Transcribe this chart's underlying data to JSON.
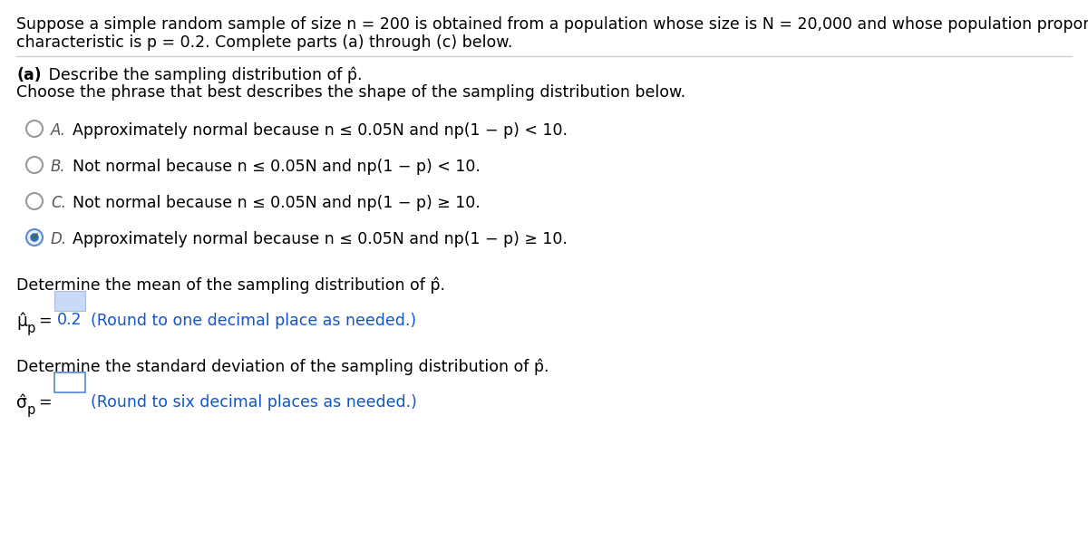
{
  "background_color": "#ffffff",
  "header_line1": "Suppose a simple random sample of size n = 200 is obtained from a population whose size is N = 20,000 and whose population proportion with a specified",
  "header_line2": "characteristic is p = 0.2. Complete parts (a) through (c) below.",
  "header_bold_parts": [
    "(a)",
    "(c)"
  ],
  "section_a_line1": "(a) Describe the sampling distribution of p̂.",
  "section_a_line2": "Choose the phrase that best describes the shape of the sampling distribution below.",
  "options": [
    {
      "label": "A.",
      "text": "Approximately normal because n ≤ 0.05N and np(1 − p) < 10.",
      "selected": false
    },
    {
      "label": "B.",
      "text": "Not normal because n ≤ 0.05N and np(1 − p) < 10.",
      "selected": false
    },
    {
      "label": "C.",
      "text": "Not normal because n ≤ 0.05N and np(1 − p) ≥ 10.",
      "selected": false
    },
    {
      "label": "D.",
      "text": "Approximately normal because n ≤ 0.05N and np(1 − p) ≥ 10.",
      "selected": true
    }
  ],
  "mean_section_title": "Determine the mean of the sampling distribution of p̂.",
  "std_section_title": "Determine the standard deviation of the sampling distribution of p̂.",
  "mean_value": "0.2",
  "mean_note": "(Round to one decimal place as needed.)",
  "std_note": "(Round to six decimal places as needed.)",
  "text_color": "#000000",
  "blue_color": "#1155cc",
  "highlight_color": "#c9daf8",
  "input_box_color": "#ffffff",
  "input_box_border": "#4a86e8",
  "line_color": "#cccccc",
  "radio_unselected_color": "#aaaaaa",
  "radio_selected_fill": "#4a7fc1",
  "radio_selected_border": "#4a7fc1",
  "check_color": "#2a7a2a",
  "font_size": 12.5
}
